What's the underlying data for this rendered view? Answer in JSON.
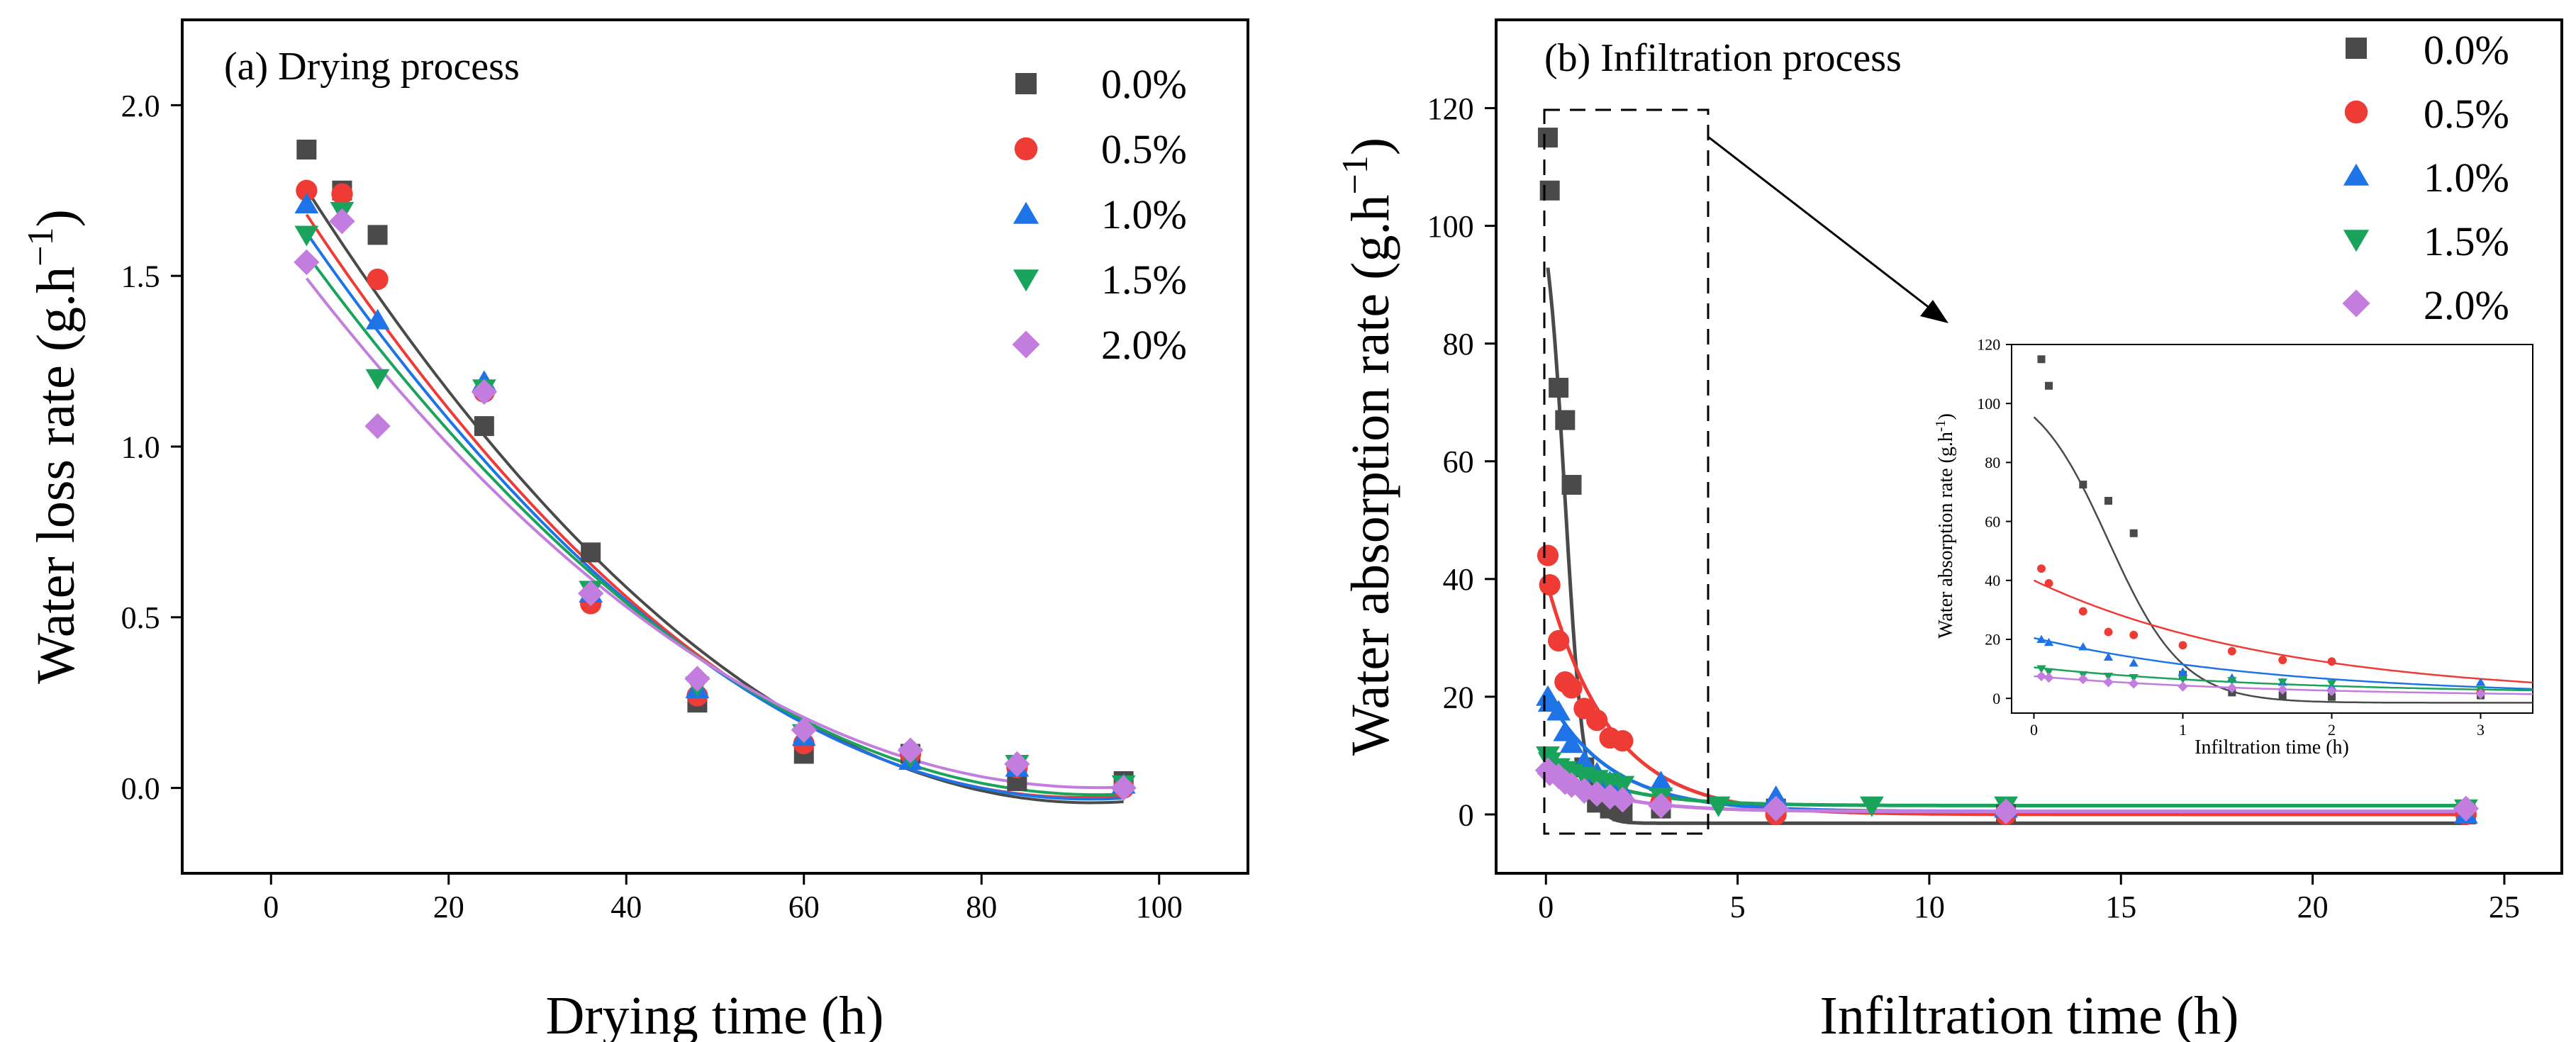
{
  "colors": {
    "s0": "#4a4a4a",
    "s05": "#ef3b36",
    "s10": "#1e74e6",
    "s15": "#1aa35a",
    "s20": "#c27ddf"
  },
  "chart_data": [
    {
      "id": "a",
      "type": "scatter",
      "title": "(a) Drying process",
      "xlabel": "Drying time (h)",
      "ylabel": "Water loss rate (g.h",
      "ylabel_sup": "−1",
      "ylabel_close": ")",
      "xlim": [
        -10,
        110
      ],
      "ylim": [
        -0.25,
        2.25
      ],
      "xticks": [
        0,
        20,
        40,
        60,
        80,
        100
      ],
      "yticks": [
        0.0,
        0.5,
        1.0,
        1.5,
        2.0
      ],
      "xtick_labels": [
        "0",
        "20",
        "40",
        "60",
        "80",
        "100"
      ],
      "ytick_labels": [
        "0.0",
        "0.5",
        "1.0",
        "1.5",
        "2.0"
      ],
      "legend": "top-right",
      "series": [
        {
          "name": "0.0%",
          "color": "#4a4a4a",
          "marker": "square",
          "x": [
            4,
            8,
            12,
            24,
            36,
            48,
            60,
            72,
            84,
            96
          ],
          "y": [
            1.87,
            1.75,
            1.62,
            1.06,
            0.69,
            0.25,
            0.1,
            0.1,
            0.02,
            0.02
          ],
          "fit": [
            1.92,
            -0.0425,
            0.00023
          ]
        },
        {
          "name": "0.5%",
          "color": "#ef3b36",
          "marker": "circle",
          "x": [
            4,
            8,
            12,
            24,
            36,
            48,
            60,
            72,
            84,
            96
          ],
          "y": [
            1.75,
            1.74,
            1.49,
            1.16,
            0.54,
            0.27,
            0.13,
            0.1,
            0.06,
            0.0
          ],
          "fit": [
            1.84,
            -0.041,
            0.000225
          ]
        },
        {
          "name": "1.0%",
          "color": "#1e74e6",
          "marker": "triangle-up",
          "x": [
            4,
            12,
            24,
            36,
            48,
            60,
            72,
            84,
            96
          ],
          "y": [
            1.71,
            1.37,
            1.19,
            0.57,
            0.29,
            0.15,
            0.08,
            0.06,
            0.01
          ],
          "fit": [
            1.78,
            -0.0393,
            0.000213
          ]
        },
        {
          "name": "1.5%",
          "color": "#1aa35a",
          "marker": "triangle-down",
          "x": [
            4,
            8,
            12,
            24,
            36,
            48,
            60,
            72,
            84,
            96
          ],
          "y": [
            1.62,
            1.69,
            1.2,
            1.17,
            0.58,
            0.3,
            0.16,
            0.09,
            0.07,
            0.01
          ],
          "fit": [
            1.71,
            -0.0372,
            0.0002
          ]
        },
        {
          "name": "2.0%",
          "color": "#c27ddf",
          "marker": "diamond",
          "x": [
            4,
            8,
            12,
            24,
            36,
            48,
            60,
            72,
            84,
            96
          ],
          "y": [
            1.54,
            1.66,
            1.06,
            1.16,
            0.57,
            0.32,
            0.17,
            0.11,
            0.07,
            0.0
          ],
          "fit": [
            1.63,
            -0.035,
            0.000188
          ]
        }
      ]
    },
    {
      "id": "b",
      "type": "scatter",
      "title": "(b)  Infiltration process",
      "xlabel": "Infiltration time (h)",
      "ylabel": "Water absorption rate (g.h",
      "ylabel_sup": "−1",
      "ylabel_close": ")",
      "xlim": [
        -1.3,
        26.5
      ],
      "ylim": [
        -10,
        135
      ],
      "xticks": [
        0,
        5,
        10,
        15,
        20,
        25
      ],
      "yticks": [
        0,
        20,
        40,
        60,
        80,
        100,
        120
      ],
      "xtick_labels": [
        "0",
        "5",
        "10",
        "15",
        "20",
        "25"
      ],
      "ytick_labels": [
        "0",
        "20",
        "40",
        "60",
        "80",
        "100",
        "120"
      ],
      "legend": "top-right",
      "series": [
        {
          "name": "0.0%",
          "color": "#4a4a4a",
          "marker": "square",
          "x": [
            0.05,
            0.1,
            0.33,
            0.5,
            0.67,
            1.0,
            1.33,
            1.67,
            2.0,
            3.0,
            6.0,
            12.0,
            24.0
          ],
          "y": [
            115,
            106,
            72.5,
            67,
            56,
            8,
            2,
            1,
            0.5,
            1,
            1,
            0,
            0
          ],
          "fit": {
            "A": 110,
            "t0": 0.5,
            "w": 0.55,
            "B": -1.5
          }
        },
        {
          "name": "0.5%",
          "color": "#ef3b36",
          "marker": "circle",
          "x": [
            0.05,
            0.1,
            0.33,
            0.5,
            0.67,
            1.0,
            1.33,
            1.67,
            2.0,
            3.0,
            6.0,
            12.0,
            24.0
          ],
          "y": [
            44,
            39,
            29.5,
            22.5,
            21.5,
            18,
            16,
            13,
            12.5,
            2,
            0,
            0,
            0
          ],
          "fit": {
            "a": 40,
            "k": 0.6,
            "c": 0
          }
        },
        {
          "name": "1.0%",
          "color": "#1e74e6",
          "marker": "triangle-up",
          "x": [
            0.05,
            0.1,
            0.33,
            0.5,
            0.67,
            1.0,
            1.33,
            1.67,
            2.0,
            3.0,
            6.0,
            12.0,
            24.0
          ],
          "y": [
            20,
            19,
            17.5,
            14,
            12,
            9,
            7,
            5.5,
            4,
            5.5,
            3,
            1,
            0
          ],
          "fit": {
            "a": 20,
            "k": 0.6,
            "c": 0.5
          }
        },
        {
          "name": "1.5%",
          "color": "#1aa35a",
          "marker": "triangle-down",
          "x": [
            0.05,
            0.1,
            0.33,
            0.5,
            0.67,
            1.0,
            1.33,
            1.67,
            2.0,
            3.0,
            4.5,
            8.5,
            12.0,
            24.0
          ],
          "y": [
            10,
            9,
            8,
            7.5,
            7,
            6.5,
            6,
            5.5,
            5,
            3,
            1.5,
            1.5,
            1.5,
            1
          ],
          "fit": {
            "a": 9,
            "k": 0.6,
            "c": 1.5
          }
        },
        {
          "name": "2.0%",
          "color": "#c27ddf",
          "marker": "diamond",
          "x": [
            0.05,
            0.1,
            0.33,
            0.5,
            0.67,
            1.0,
            1.33,
            1.67,
            2.0,
            3.0,
            6.0,
            12.0,
            24.0
          ],
          "y": [
            7.5,
            7,
            6.5,
            5.5,
            5,
            4,
            3.5,
            3,
            2.5,
            1.5,
            1,
            0.5,
            1
          ],
          "fit": {
            "a": 7,
            "k": 0.6,
            "c": 0.5
          }
        }
      ]
    },
    {
      "id": "inset",
      "type": "scatter",
      "xlabel": "Infiltration time (h)",
      "ylabel": "Water absorption rate (g.h",
      "ylabel_sup": "-1",
      "ylabel_close": ")",
      "xlim": [
        -0.15,
        3.35
      ],
      "ylim": [
        -5,
        120
      ],
      "xticks": [
        0,
        1,
        2,
        3
      ],
      "yticks": [
        0,
        20,
        40,
        60,
        80,
        100,
        120
      ],
      "xtick_labels": [
        "0",
        "1",
        "2",
        "3"
      ],
      "ytick_labels": [
        "0",
        "20",
        "40",
        "60",
        "80",
        "100",
        "120"
      ]
    }
  ]
}
